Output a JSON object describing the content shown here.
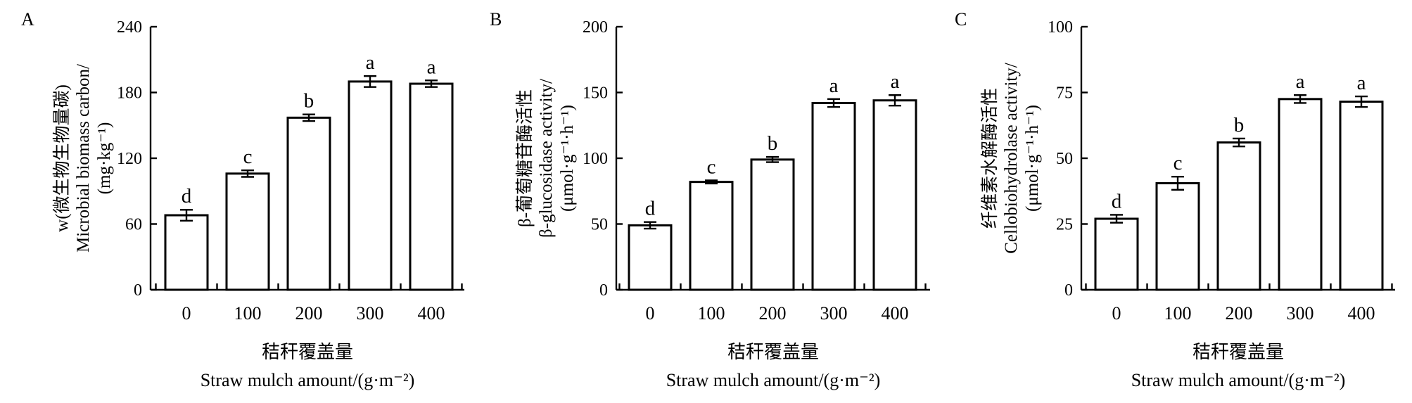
{
  "chart_data": [
    {
      "type": "bar",
      "panel": "A",
      "categories": [
        "0",
        "100",
        "200",
        "300",
        "400"
      ],
      "values": [
        68,
        106,
        157,
        190,
        188
      ],
      "errors": [
        5,
        3,
        3,
        5,
        3
      ],
      "significance": [
        "d",
        "c",
        "b",
        "a",
        "a"
      ],
      "ylim": [
        0,
        240
      ],
      "yticks": [
        0,
        60,
        120,
        180,
        240
      ],
      "ylabel": [
        "w(微生物生物量碳)",
        "Microbial biomass carbon/",
        "(mg·kg⁻¹)"
      ],
      "xlabel": [
        "秸秆覆盖量",
        "Straw mulch amount/(g·m⁻²)"
      ]
    },
    {
      "type": "bar",
      "panel": "B",
      "categories": [
        "0",
        "100",
        "200",
        "300",
        "400"
      ],
      "values": [
        49,
        82,
        99,
        142,
        144
      ],
      "errors": [
        2.5,
        1.2,
        2,
        3,
        4
      ],
      "significance": [
        "d",
        "c",
        "b",
        "a",
        "a"
      ],
      "ylim": [
        0,
        200
      ],
      "yticks": [
        0,
        50,
        100,
        150,
        200
      ],
      "ylabel": [
        "β-葡萄糖苷酶活性",
        "β-glucosidase activity/",
        "(μmol·g⁻¹·h⁻¹)"
      ],
      "xlabel": [
        "秸秆覆盖量",
        "Straw mulch amount/(g·m⁻²)"
      ]
    },
    {
      "type": "bar",
      "panel": "C",
      "categories": [
        "0",
        "100",
        "200",
        "300",
        "400"
      ],
      "values": [
        27,
        40.5,
        56,
        72.5,
        71.5
      ],
      "errors": [
        1.5,
        2.5,
        1.5,
        1.5,
        2
      ],
      "significance": [
        "d",
        "c",
        "b",
        "a",
        "a"
      ],
      "ylim": [
        0,
        100
      ],
      "yticks": [
        0,
        25,
        50,
        75,
        100
      ],
      "ylabel": [
        "纤维素水解酶活性",
        "Cellobiohydrolase activity/",
        "(μmol·g⁻¹·h⁻¹)"
      ],
      "xlabel": [
        "秸秆覆盖量",
        "Straw mulch amount/(g·m⁻²)"
      ]
    }
  ]
}
